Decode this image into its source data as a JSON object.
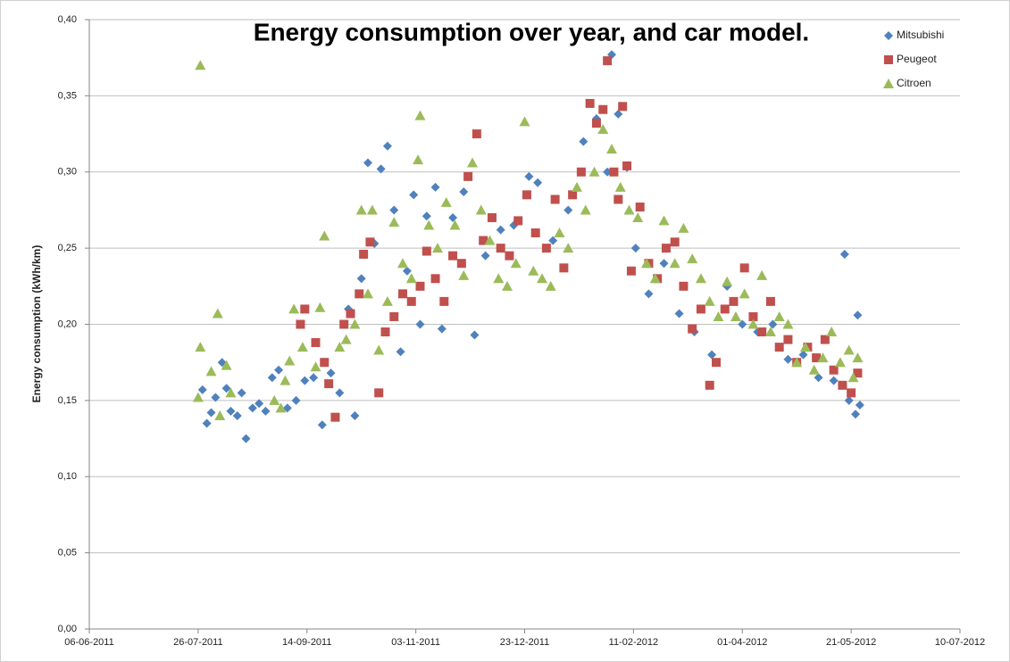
{
  "chart_data": {
    "type": "scatter",
    "title": "Energy consumption over year, and car model.",
    "y_label": "Energy consumption (kWh/km)",
    "xlim": [
      "06-06-2011",
      "10-07-2012"
    ],
    "xticks": [
      "06-06-2011",
      "26-07-2011",
      "14-09-2011",
      "03-11-2011",
      "23-12-2011",
      "11-02-2012",
      "01-04-2012",
      "21-05-2012",
      "10-07-2012"
    ],
    "ylim": [
      0,
      0.4
    ],
    "yticks": [
      {
        "value": 0,
        "label": "0,00"
      },
      {
        "value": 0.05,
        "label": "0,05"
      },
      {
        "value": 0.1,
        "label": "0,10"
      },
      {
        "value": 0.15,
        "label": "0,15"
      },
      {
        "value": 0.2,
        "label": "0,20"
      },
      {
        "value": 0.25,
        "label": "0,25"
      },
      {
        "value": 0.3,
        "label": "0,30"
      },
      {
        "value": 0.35,
        "label": "0,35"
      },
      {
        "value": 0.4,
        "label": "0,40"
      }
    ],
    "grid": true,
    "legend": "top-right",
    "series": [
      {
        "name": "Mitsubishi",
        "color": "#4f81bd",
        "marker": "diamond",
        "x": [
          "28-07-2011",
          "30-07-2011",
          "01-08-2011",
          "03-08-2011",
          "06-08-2011",
          "08-08-2011",
          "10-08-2011",
          "13-08-2011",
          "15-08-2011",
          "17-08-2011",
          "20-08-2011",
          "23-08-2011",
          "26-08-2011",
          "29-08-2011",
          "01-09-2011",
          "05-09-2011",
          "09-09-2011",
          "13-09-2011",
          "17-09-2011",
          "21-09-2011",
          "25-09-2011",
          "29-09-2011",
          "03-10-2011",
          "06-10-2011",
          "09-10-2011",
          "12-10-2011",
          "15-10-2011",
          "18-10-2011",
          "21-10-2011",
          "24-10-2011",
          "27-10-2011",
          "30-10-2011",
          "02-11-2011",
          "05-11-2011",
          "08-11-2011",
          "12-11-2011",
          "15-11-2011",
          "20-11-2011",
          "25-11-2011",
          "30-11-2011",
          "05-12-2011",
          "12-12-2011",
          "18-12-2011",
          "25-12-2011",
          "29-12-2011",
          "05-01-2012",
          "12-01-2012",
          "19-01-2012",
          "25-01-2012",
          "30-01-2012",
          "01-02-2012",
          "04-02-2012",
          "08-02-2012",
          "12-02-2012",
          "18-02-2012",
          "25-02-2012",
          "03-03-2012",
          "10-03-2012",
          "18-03-2012",
          "25-03-2012",
          "01-04-2012",
          "08-04-2012",
          "15-04-2012",
          "22-04-2012",
          "29-04-2012",
          "06-05-2012",
          "13-05-2012",
          "18-05-2012",
          "20-05-2012",
          "23-05-2012",
          "24-05-2012",
          "25-05-2012"
        ],
        "values": [
          0.157,
          0.135,
          0.142,
          0.152,
          0.175,
          0.158,
          0.143,
          0.14,
          0.155,
          0.125,
          0.145,
          0.148,
          0.143,
          0.165,
          0.17,
          0.145,
          0.15,
          0.163,
          0.165,
          0.134,
          0.168,
          0.155,
          0.21,
          0.14,
          0.23,
          0.306,
          0.253,
          0.302,
          0.317,
          0.275,
          0.182,
          0.235,
          0.285,
          0.2,
          0.271,
          0.29,
          0.197,
          0.27,
          0.287,
          0.193,
          0.245,
          0.262,
          0.265,
          0.297,
          0.293,
          0.255,
          0.275,
          0.32,
          0.335,
          0.3,
          0.377,
          0.338,
          0.303,
          0.25,
          0.22,
          0.24,
          0.207,
          0.195,
          0.18,
          0.225,
          0.2,
          0.195,
          0.2,
          0.177,
          0.18,
          0.165,
          0.163,
          0.246,
          0.15,
          0.141,
          0.206,
          0.147
        ]
      },
      {
        "name": "Peugeot",
        "color": "#c0504d",
        "marker": "square",
        "x": [
          "11-09-2011",
          "13-09-2011",
          "18-09-2011",
          "22-09-2011",
          "24-09-2011",
          "27-09-2011",
          "01-10-2011",
          "04-10-2011",
          "08-10-2011",
          "10-10-2011",
          "13-10-2011",
          "17-10-2011",
          "20-10-2011",
          "24-10-2011",
          "28-10-2011",
          "01-11-2011",
          "05-11-2011",
          "08-11-2011",
          "12-11-2011",
          "16-11-2011",
          "20-11-2011",
          "24-11-2011",
          "27-11-2011",
          "01-12-2011",
          "04-12-2011",
          "08-12-2011",
          "12-12-2011",
          "16-12-2011",
          "20-12-2011",
          "24-12-2011",
          "28-12-2011",
          "02-01-2012",
          "06-01-2012",
          "10-01-2012",
          "14-01-2012",
          "18-01-2012",
          "22-01-2012",
          "25-01-2012",
          "28-01-2012",
          "30-01-2012",
          "02-02-2012",
          "04-02-2012",
          "06-02-2012",
          "08-02-2012",
          "10-02-2012",
          "14-02-2012",
          "18-02-2012",
          "22-02-2012",
          "26-02-2012",
          "01-03-2012",
          "05-03-2012",
          "09-03-2012",
          "13-03-2012",
          "17-03-2012",
          "20-03-2012",
          "24-03-2012",
          "28-03-2012",
          "02-04-2012",
          "06-04-2012",
          "10-04-2012",
          "14-04-2012",
          "18-04-2012",
          "22-04-2012",
          "26-04-2012",
          "01-05-2012",
          "05-05-2012",
          "09-05-2012",
          "13-05-2012",
          "17-05-2012",
          "21-05-2012",
          "24-05-2012"
        ],
        "values": [
          0.2,
          0.21,
          0.188,
          0.175,
          0.161,
          0.139,
          0.2,
          0.207,
          0.22,
          0.246,
          0.254,
          0.155,
          0.195,
          0.205,
          0.22,
          0.215,
          0.225,
          0.248,
          0.23,
          0.215,
          0.245,
          0.24,
          0.297,
          0.325,
          0.255,
          0.27,
          0.25,
          0.245,
          0.268,
          0.285,
          0.26,
          0.25,
          0.282,
          0.237,
          0.285,
          0.3,
          0.345,
          0.332,
          0.341,
          0.373,
          0.3,
          0.282,
          0.343,
          0.304,
          0.235,
          0.277,
          0.24,
          0.23,
          0.25,
          0.254,
          0.225,
          0.197,
          0.21,
          0.16,
          0.175,
          0.21,
          0.215,
          0.237,
          0.205,
          0.195,
          0.215,
          0.185,
          0.19,
          0.175,
          0.185,
          0.178,
          0.19,
          0.17,
          0.16,
          0.155,
          0.168
        ]
      },
      {
        "name": "Citroen",
        "color": "#9bbb59",
        "marker": "triangle",
        "x": [
          "27-07-2011",
          "27-07-2011",
          "26-07-2011",
          "01-08-2011",
          "04-08-2011",
          "05-08-2011",
          "08-08-2011",
          "10-08-2011",
          "30-08-2011",
          "02-09-2011",
          "04-09-2011",
          "06-09-2011",
          "08-09-2011",
          "12-09-2011",
          "18-09-2011",
          "20-09-2011",
          "22-09-2011",
          "29-09-2011",
          "02-10-2011",
          "06-10-2011",
          "09-10-2011",
          "12-10-2011",
          "14-10-2011",
          "17-10-2011",
          "21-10-2011",
          "24-10-2011",
          "28-10-2011",
          "01-11-2011",
          "04-11-2011",
          "05-11-2011",
          "09-11-2011",
          "13-11-2011",
          "17-11-2011",
          "21-11-2011",
          "25-11-2011",
          "29-11-2011",
          "03-12-2011",
          "07-12-2011",
          "11-12-2011",
          "15-12-2011",
          "19-12-2011",
          "23-12-2011",
          "27-12-2011",
          "31-12-2011",
          "04-01-2012",
          "08-01-2012",
          "12-01-2012",
          "16-01-2012",
          "20-01-2012",
          "24-01-2012",
          "28-01-2012",
          "01-02-2012",
          "05-02-2012",
          "09-02-2012",
          "13-02-2012",
          "17-02-2012",
          "21-02-2012",
          "25-02-2012",
          "01-03-2012",
          "05-03-2012",
          "09-03-2012",
          "13-03-2012",
          "17-03-2012",
          "21-03-2012",
          "25-03-2012",
          "29-03-2012",
          "02-04-2012",
          "06-04-2012",
          "10-04-2012",
          "14-04-2012",
          "18-04-2012",
          "22-04-2012",
          "26-04-2012",
          "30-04-2012",
          "04-05-2012",
          "08-05-2012",
          "12-05-2012",
          "16-05-2012",
          "20-05-2012",
          "24-05-2012",
          "22-05-2012"
        ],
        "values": [
          0.37,
          0.185,
          0.152,
          0.169,
          0.207,
          0.14,
          0.173,
          0.155,
          0.15,
          0.145,
          0.163,
          0.176,
          0.21,
          0.185,
          0.172,
          0.211,
          0.258,
          0.185,
          0.19,
          0.2,
          0.275,
          0.22,
          0.275,
          0.183,
          0.215,
          0.267,
          0.24,
          0.23,
          0.308,
          0.337,
          0.265,
          0.25,
          0.28,
          0.265,
          0.232,
          0.306,
          0.275,
          0.255,
          0.23,
          0.225,
          0.24,
          0.333,
          0.235,
          0.23,
          0.225,
          0.26,
          0.25,
          0.29,
          0.275,
          0.3,
          0.328,
          0.315,
          0.29,
          0.275,
          0.27,
          0.24,
          0.23,
          0.268,
          0.24,
          0.263,
          0.243,
          0.23,
          0.215,
          0.205,
          0.228,
          0.205,
          0.22,
          0.2,
          0.232,
          0.195,
          0.205,
          0.2,
          0.175,
          0.185,
          0.17,
          0.178,
          0.195,
          0.175,
          0.183,
          0.178,
          0.165
        ]
      }
    ]
  }
}
